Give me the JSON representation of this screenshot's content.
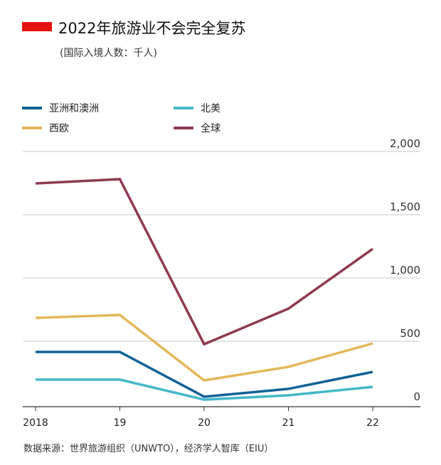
{
  "chart_data": {
    "type": "line",
    "title": "2022年旅游业不会完全复苏",
    "subtitle": "(国际入境人数：千人)",
    "source": "数据来源：世界旅游组织（UNWTO），经济学人智库（EIU）",
    "categories": [
      "2018",
      "19",
      "20",
      "21",
      "22"
    ],
    "ylim": [
      0,
      2000
    ],
    "yticks": [
      "0",
      "500",
      "1,000",
      "1,500",
      "2,000"
    ],
    "ytick_values": [
      0,
      500,
      1000,
      1500,
      2000
    ],
    "grid": true,
    "legend_placement": "top",
    "accent_color": "#e3120b",
    "series": [
      {
        "name": "亚洲和澳洲",
        "color": "#0f6296",
        "values": [
          416,
          416,
          62,
          124,
          258
        ]
      },
      {
        "name": "北美",
        "color": "#45b8c8",
        "values": [
          197,
          197,
          39,
          73,
          140
        ]
      },
      {
        "name": "西欧",
        "color": "#e4b75a",
        "values": [
          685,
          708,
          191,
          298,
          483
        ]
      },
      {
        "name": "全球",
        "color": "#8e3a4f",
        "values": [
          1747,
          1781,
          477,
          758,
          1230
        ]
      }
    ]
  }
}
